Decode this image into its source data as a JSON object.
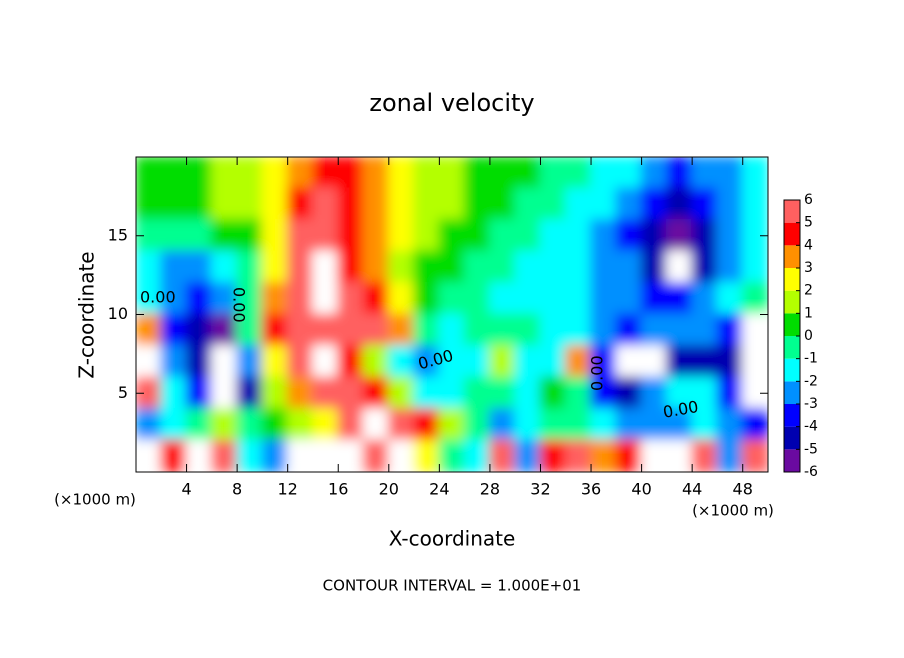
{
  "chart_data": {
    "type": "heatmap",
    "title": "zonal velocity",
    "x_label": "X-coordinate",
    "y_label": "Z-coordinate",
    "x_unit": "(×1000 m)",
    "footer": "CONTOUR INTERVAL = 1.000E+01",
    "contour_label": "0.00",
    "xlim": [
      0,
      50
    ],
    "ylim": [
      0,
      20
    ],
    "xticks": [
      4,
      8,
      12,
      16,
      20,
      24,
      28,
      32,
      36,
      40,
      44,
      48
    ],
    "yticks": [
      5,
      10,
      15
    ],
    "x": [
      1,
      3,
      5,
      7,
      9,
      11,
      13,
      15,
      17,
      19,
      21,
      23,
      25,
      27,
      29,
      31,
      33,
      35,
      37,
      39,
      41,
      43,
      45,
      47,
      49
    ],
    "y": [
      19,
      17,
      15,
      13,
      11,
      9,
      7,
      5,
      3,
      1
    ],
    "values": [
      [
        0.5,
        0.5,
        0.5,
        1,
        1,
        2,
        3,
        4,
        4,
        3,
        2,
        1.5,
        1,
        0.5,
        0.5,
        0,
        -0.5,
        -1,
        -1.5,
        -2,
        -3,
        -3.5,
        -3,
        -2.5,
        -2
      ],
      [
        0,
        0,
        0.5,
        1,
        1,
        2,
        4,
        5,
        4,
        3,
        2,
        1,
        1,
        0.5,
        0,
        -0.5,
        -1,
        -1.5,
        -2,
        -3,
        -4,
        -4.5,
        -4,
        -3,
        -2
      ],
      [
        -1,
        -1,
        -0.5,
        0,
        0.5,
        2,
        5,
        6,
        4,
        3,
        2,
        1,
        0.5,
        0,
        -0.5,
        -1,
        -1.5,
        -2,
        -2.5,
        -3.5,
        -5,
        -5.5,
        -4.5,
        -3,
        -2
      ],
      [
        -2,
        -3,
        -3,
        -2,
        -1,
        2,
        6,
        7,
        4,
        3,
        1,
        0.5,
        0,
        -0.5,
        -1,
        -1.5,
        -2,
        -2,
        -2.5,
        -3,
        -5,
        -6.5,
        -5,
        -3,
        -2
      ],
      [
        -1.5,
        -3,
        -4,
        -3,
        -1,
        3,
        6,
        7,
        5,
        4,
        2,
        0.5,
        -0.5,
        -1,
        -1.5,
        -2,
        -2,
        -2,
        -2.5,
        -3,
        -3.5,
        -4,
        -3,
        -2,
        -1
      ],
      [
        3,
        -4,
        -5,
        -6,
        -1,
        4,
        5,
        5,
        5,
        5,
        3,
        -0.5,
        -1.5,
        -1,
        -1,
        -1,
        -1.5,
        -2,
        -3,
        -4,
        -3,
        -3,
        -3,
        -4,
        6.5
      ],
      [
        6.5,
        -3,
        -5,
        7,
        -3,
        2,
        6,
        7,
        4,
        1,
        -2,
        -2.5,
        -2,
        -2,
        1,
        -1.5,
        -2,
        3,
        -4,
        7,
        7,
        -5,
        -5,
        -5,
        7
      ],
      [
        5,
        -2,
        -4,
        7,
        -5,
        1,
        3,
        5,
        6,
        4,
        1,
        -2,
        -1.5,
        -1,
        -0.5,
        -2,
        0,
        -1,
        -4,
        -5,
        -3,
        -2,
        -2,
        -4,
        7
      ],
      [
        -3,
        -2,
        -1,
        1,
        -1,
        0,
        1,
        2,
        5,
        7,
        6,
        4,
        1,
        -1,
        -3,
        -2,
        -1,
        -1,
        -2,
        -3,
        -3,
        -2.5,
        -2,
        -3,
        -4
      ],
      [
        -7,
        4,
        7,
        5,
        -2,
        -3,
        7,
        7,
        7,
        6,
        7,
        2,
        -1,
        -2,
        5,
        -3,
        4,
        6,
        3,
        4,
        7,
        7,
        5,
        -3,
        5
      ]
    ],
    "clim": [
      -6,
      6
    ],
    "colorbar_ticks": [
      -6,
      -5,
      -4,
      -3,
      -2,
      -1,
      0,
      1,
      2,
      3,
      4,
      5,
      6
    ],
    "colormap": [
      "#6a0aa0",
      "#0000b0",
      "#0000ff",
      "#0090ff",
      "#00ffff",
      "#00ff90",
      "#00dd00",
      "#b4ff00",
      "#ffff00",
      "#ff9000",
      "#ff0000",
      "#ff6060"
    ],
    "out_of_range_color": "#ffffff"
  }
}
